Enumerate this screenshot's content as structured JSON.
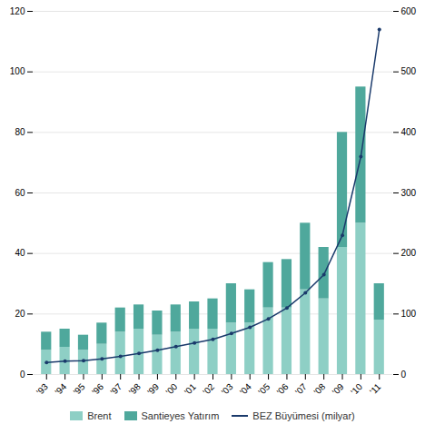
{
  "chart_data": {
    "type": "bar",
    "categories": [
      "'93",
      "'94",
      "'95",
      "'96",
      "'97",
      "'98",
      "'99",
      "'00",
      "'01",
      "'02",
      "'03",
      "'04",
      "'05",
      "'06",
      "'07",
      "'08",
      "'09",
      "'10",
      "'11"
    ],
    "series": [
      {
        "name": "Brent",
        "type": "bar",
        "color": "#8ecfc5",
        "values": [
          8,
          9,
          8,
          10,
          14,
          15,
          13,
          14,
          15,
          15,
          17,
          17,
          22,
          22,
          28,
          25,
          42,
          50,
          18
        ]
      },
      {
        "name": "Santieyes Yatırım",
        "type": "bar",
        "color": "#4fa89c",
        "values": [
          6,
          6,
          5,
          7,
          8,
          8,
          8,
          9,
          9,
          10,
          13,
          11,
          15,
          16,
          22,
          17,
          38,
          45,
          12
        ]
      },
      {
        "name": "BEZ Büyümesi (milyar)",
        "type": "line",
        "axis": "y2",
        "color": "#1a3a6b",
        "marker": "circle",
        "line_style": "solid",
        "values": [
          20,
          22,
          23,
          26,
          30,
          35,
          40,
          46,
          52,
          58,
          68,
          78,
          92,
          110,
          135,
          165,
          230,
          360,
          570
        ]
      }
    ],
    "stacked": true,
    "ylim": [
      0,
      120
    ],
    "yticks": [
      0,
      20,
      40,
      60,
      80,
      100,
      120
    ],
    "y2lim": [
      0,
      600
    ],
    "y2ticks": [
      0,
      100,
      200,
      300,
      400,
      500,
      600
    ],
    "grid": true,
    "legend": "bottom"
  }
}
